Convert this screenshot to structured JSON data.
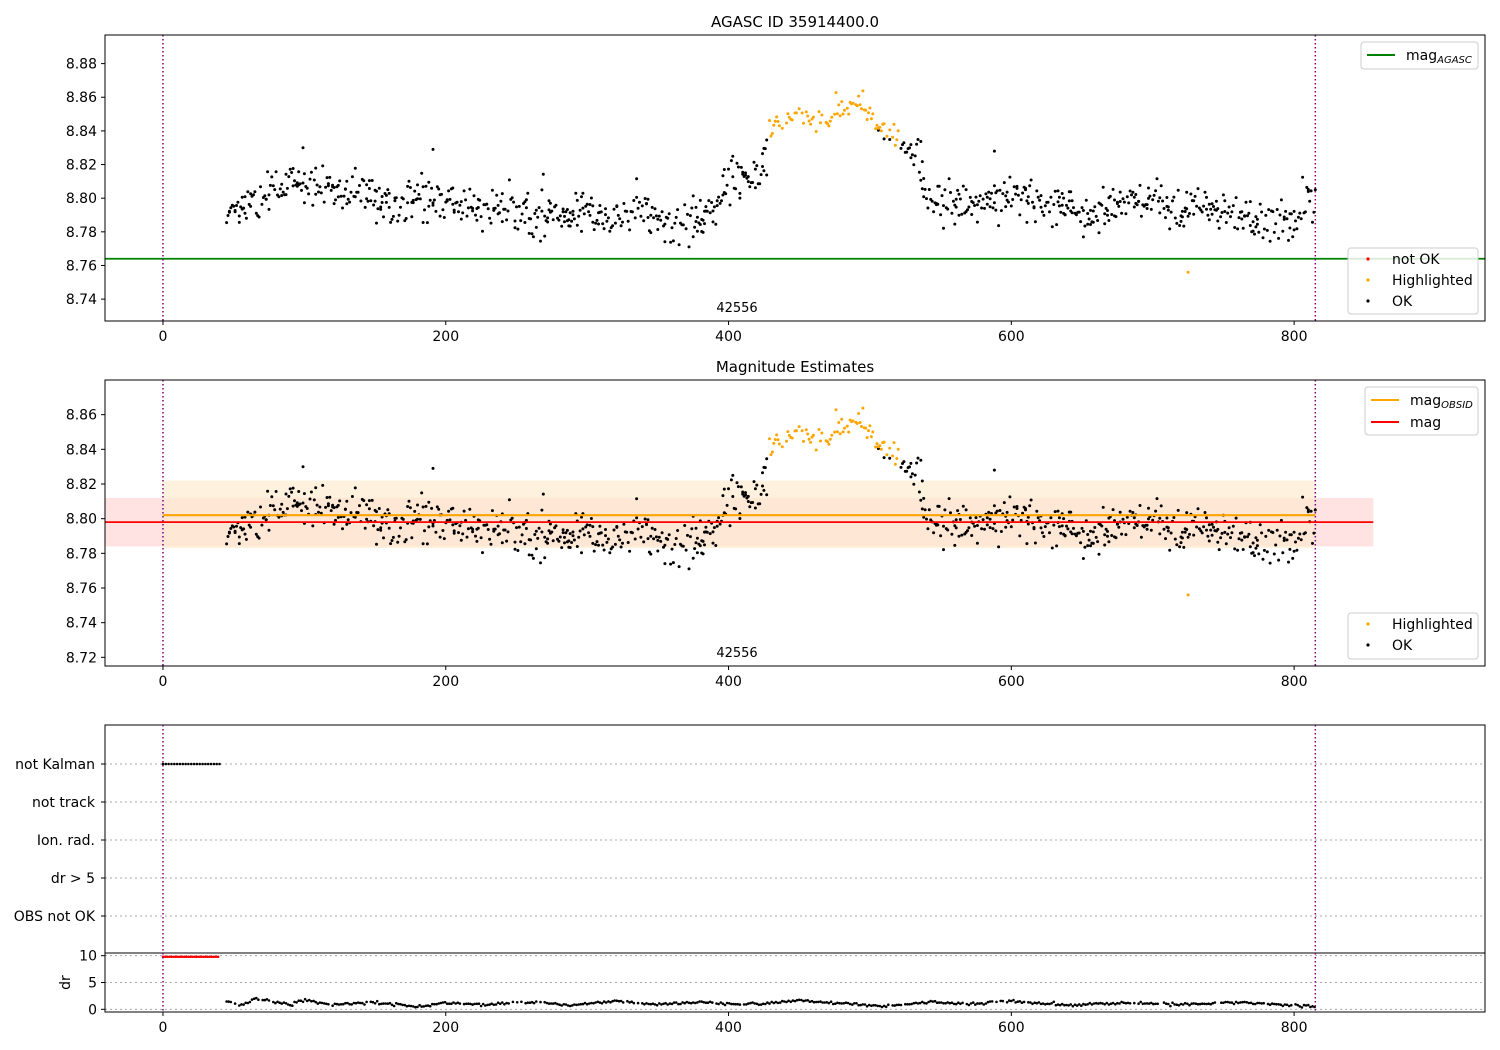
{
  "chart_data": [
    {
      "type": "scatter",
      "title": "AGASC ID 35914400.0",
      "obsid_label": "42556",
      "xlim": [
        -41,
        935
      ],
      "ylim": [
        8.727,
        8.897
      ],
      "xticks": [
        0,
        200,
        400,
        600,
        800
      ],
      "yticks": [
        8.74,
        8.76,
        8.78,
        8.8,
        8.82,
        8.84,
        8.86,
        8.88
      ],
      "vlines": [
        0,
        815
      ],
      "hlines": [
        {
          "name": "mag_AGASC",
          "y": 8.764,
          "color": "#008000"
        }
      ],
      "legend_lines": {
        "main": "mag",
        "sub": "AGASC"
      },
      "legend_points": [
        "not OK",
        "Highlighted",
        "OK"
      ],
      "series_colors": {
        "ok": "#000000",
        "highlighted": "#ffa500",
        "not_ok": "#ff0000"
      },
      "ok_anchors": [
        [
          45,
          8.792
        ],
        [
          60,
          8.796
        ],
        [
          80,
          8.806
        ],
        [
          100,
          8.81
        ],
        [
          120,
          8.806
        ],
        [
          140,
          8.804
        ],
        [
          160,
          8.794
        ],
        [
          180,
          8.8
        ],
        [
          200,
          8.8
        ],
        [
          220,
          8.795
        ],
        [
          240,
          8.792
        ],
        [
          260,
          8.792
        ],
        [
          280,
          8.788
        ],
        [
          300,
          8.791
        ],
        [
          320,
          8.789
        ],
        [
          340,
          8.792
        ],
        [
          360,
          8.784
        ],
        [
          380,
          8.79
        ],
        [
          395,
          8.797
        ],
        [
          405,
          8.813
        ],
        [
          415,
          8.808
        ],
        [
          425,
          8.822
        ],
        [
          435,
          8.831
        ],
        [
          505,
          8.838
        ],
        [
          520,
          8.834
        ],
        [
          534,
          8.822
        ],
        [
          540,
          8.799
        ],
        [
          560,
          8.796
        ],
        [
          580,
          8.8
        ],
        [
          600,
          8.803
        ],
        [
          620,
          8.797
        ],
        [
          640,
          8.795
        ],
        [
          660,
          8.79
        ],
        [
          680,
          8.796
        ],
        [
          700,
          8.798
        ],
        [
          720,
          8.79
        ],
        [
          740,
          8.796
        ],
        [
          760,
          8.789
        ],
        [
          780,
          8.785
        ],
        [
          800,
          8.786
        ],
        [
          808,
          8.798
        ],
        [
          815,
          8.806
        ]
      ],
      "ok_noise": 0.009,
      "highlight_anchors": [
        [
          428,
          8.842
        ],
        [
          440,
          8.846
        ],
        [
          450,
          8.852
        ],
        [
          460,
          8.847
        ],
        [
          470,
          8.848
        ],
        [
          480,
          8.853
        ],
        [
          490,
          8.858
        ],
        [
          500,
          8.848
        ],
        [
          510,
          8.84
        ],
        [
          522,
          8.835
        ]
      ],
      "highlight_noise": 0.006,
      "extra_points": [
        {
          "x": 725,
          "y": 8.756,
          "series": "highlighted"
        },
        {
          "x": 99,
          "y": 8.83,
          "series": "ok"
        },
        {
          "x": 191,
          "y": 8.829,
          "series": "ok"
        },
        {
          "x": 588,
          "y": 8.828,
          "series": "ok"
        }
      ]
    },
    {
      "type": "scatter",
      "title": "Magnitude Estimates",
      "obsid_label": "42556",
      "xlim": [
        -41,
        935
      ],
      "ylim": [
        8.715,
        8.88
      ],
      "xticks": [
        0,
        200,
        400,
        600,
        800
      ],
      "yticks": [
        8.72,
        8.74,
        8.76,
        8.78,
        8.8,
        8.82,
        8.84,
        8.86
      ],
      "vlines": [
        0,
        815
      ],
      "bands": [
        {
          "name": "mag_OBSID",
          "y": 8.802,
          "low": 8.783,
          "high": 8.822,
          "x0": 0,
          "x1": 815,
          "line_color": "#ffa500",
          "fill_color": "#fde9cc"
        },
        {
          "name": "mag",
          "y": 8.798,
          "low": 8.784,
          "high": 8.812,
          "x0": -41,
          "x1": 856,
          "line_color": "#ff0000",
          "fill_color": "#ffcccc"
        }
      ],
      "legend_lines": [
        {
          "main": "mag",
          "sub": "OBSID",
          "color": "#ffa500"
        },
        {
          "main": "mag",
          "sub": "",
          "color": "#ff0000"
        }
      ],
      "legend_points": [
        "Highlighted",
        "OK"
      ]
    },
    {
      "type": "scatter",
      "title": "",
      "flag_labels": [
        "not Kalman",
        "not track",
        "Ion. rad.",
        "dr > 5",
        "OBS not OK"
      ],
      "flag_points": {
        "label": "not Kalman",
        "x_start": 0,
        "x_end": 40
      },
      "xlim": [
        -41,
        935
      ],
      "xticks": [
        0,
        200,
        400,
        600,
        800
      ],
      "dr_ylabel": "dr",
      "dr_ylim": [
        -0.5,
        10.5
      ],
      "dr_yticks": [
        0,
        5,
        10
      ],
      "dr_high_points": {
        "x_start": 0,
        "x_end": 40,
        "y": 9.8,
        "color": "#ff0000"
      },
      "dr_anchors": [
        [
          45,
          1.5
        ],
        [
          55,
          0.8
        ],
        [
          65,
          1.9
        ],
        [
          75,
          1.6
        ],
        [
          90,
          0.9
        ],
        [
          100,
          1.7
        ],
        [
          120,
          0.9
        ],
        [
          150,
          1.3
        ],
        [
          180,
          0.5
        ],
        [
          200,
          1.2
        ],
        [
          230,
          0.9
        ],
        [
          260,
          1.3
        ],
        [
          290,
          0.8
        ],
        [
          320,
          1.6
        ],
        [
          350,
          0.9
        ],
        [
          380,
          1.3
        ],
        [
          410,
          0.9
        ],
        [
          450,
          1.6
        ],
        [
          480,
          1.1
        ],
        [
          510,
          0.5
        ],
        [
          540,
          1.4
        ],
        [
          570,
          1.0
        ],
        [
          600,
          1.5
        ],
        [
          640,
          0.8
        ],
        [
          680,
          1.2
        ],
        [
          720,
          0.9
        ],
        [
          760,
          1.4
        ],
        [
          800,
          0.7
        ],
        [
          815,
          0.6
        ]
      ],
      "vlines": [
        0,
        815
      ]
    }
  ]
}
